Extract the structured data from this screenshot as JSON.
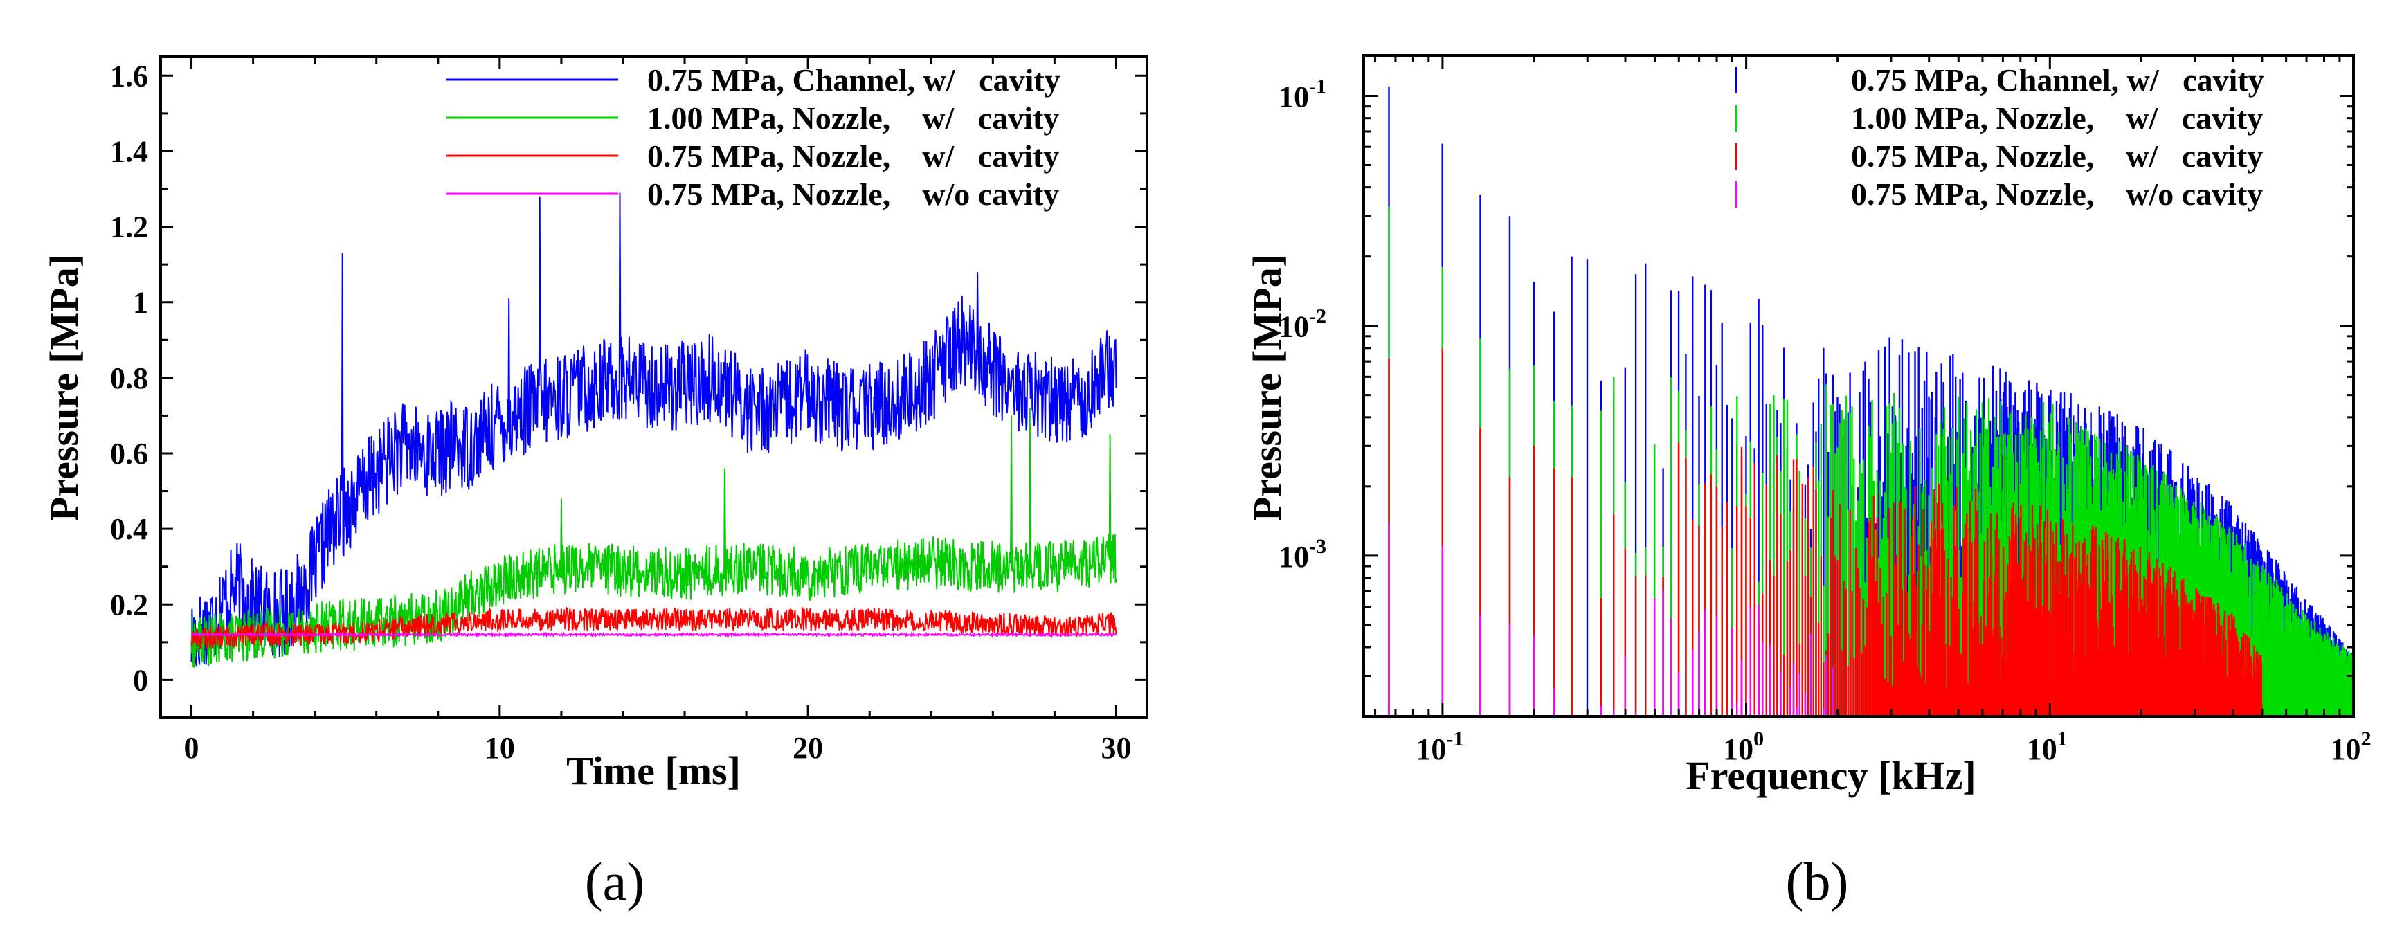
{
  "chart_data": [
    {
      "id": "a",
      "panel_label": "(a)",
      "type": "line",
      "xlabel": "Time [ms]",
      "ylabel": "Pressure [MPa]",
      "xlim": [
        -1,
        31
      ],
      "ylim": [
        -0.1,
        1.65
      ],
      "xticks": [
        0,
        10,
        20,
        30
      ],
      "xtick_labels": [
        "0",
        "10",
        "20",
        "30"
      ],
      "yticks": [
        0,
        0.2,
        0.4,
        0.6,
        0.8,
        1.0,
        1.2,
        1.4,
        1.6
      ],
      "ytick_labels": [
        "0",
        "0.2",
        "0.4",
        "0.6",
        "0.8",
        "1",
        "1.2",
        "1.4",
        "1.6"
      ],
      "legend_position": "top-right",
      "series": [
        {
          "name": "0.75 MPa, Channel, w/   cavity",
          "color": "#0000ff",
          "x": [
            0,
            0.5,
            1,
            1.5,
            2,
            2.5,
            3,
            3.5,
            4,
            4.5,
            5,
            5.5,
            6,
            6.5,
            7,
            7.5,
            8,
            8.5,
            9,
            9.5,
            10,
            11,
            12,
            13,
            14,
            15,
            16,
            17,
            18,
            19,
            20,
            21,
            22,
            23,
            24,
            25,
            26,
            27,
            28,
            29,
            30
          ],
          "values": [
            0.11,
            0.14,
            0.2,
            0.25,
            0.2,
            0.18,
            0.18,
            0.22,
            0.3,
            0.4,
            0.45,
            0.5,
            0.55,
            0.6,
            0.62,
            0.6,
            0.6,
            0.62,
            0.62,
            0.65,
            0.68,
            0.72,
            0.75,
            0.78,
            0.8,
            0.78,
            0.78,
            0.8,
            0.72,
            0.72,
            0.76,
            0.72,
            0.72,
            0.74,
            0.8,
            0.9,
            0.82,
            0.76,
            0.74,
            0.76,
            0.84
          ],
          "noise": 0.12,
          "spikes": [
            [
              4.9,
              1.13
            ],
            [
              11.3,
              1.28
            ],
            [
              13.9,
              1.29
            ],
            [
              10.3,
              1.01
            ],
            [
              25.5,
              1.08
            ]
          ]
        },
        {
          "name": "1.00 MPa, Nozzle,    w/   cavity",
          "color": "#00cc00",
          "x": [
            0,
            2,
            4,
            6,
            8,
            9,
            10,
            12,
            14,
            16,
            18,
            20,
            22,
            24,
            26,
            28,
            30
          ],
          "values": [
            0.1,
            0.12,
            0.14,
            0.15,
            0.17,
            0.22,
            0.26,
            0.3,
            0.29,
            0.28,
            0.3,
            0.28,
            0.3,
            0.31,
            0.3,
            0.3,
            0.32
          ],
          "noise": 0.07,
          "spikes": [
            [
              27.2,
              0.72
            ],
            [
              26.6,
              0.7
            ],
            [
              29.8,
              0.65
            ],
            [
              17.3,
              0.56
            ],
            [
              12,
              0.48
            ]
          ]
        },
        {
          "name": "0.75 MPa, Nozzle,    w/   cavity",
          "color": "#ff0000",
          "x": [
            0,
            2,
            4,
            6,
            8,
            10,
            12,
            14,
            16,
            18,
            20,
            22,
            24,
            26,
            28,
            30
          ],
          "values": [
            0.11,
            0.12,
            0.12,
            0.13,
            0.15,
            0.16,
            0.16,
            0.16,
            0.16,
            0.16,
            0.16,
            0.16,
            0.16,
            0.15,
            0.14,
            0.15
          ],
          "noise": 0.03,
          "spikes": []
        },
        {
          "name": "0.75 MPa, Nozzle,    w/o cavity",
          "color": "#ff00ff",
          "x": [
            0,
            3,
            6,
            10,
            14,
            20,
            25,
            30
          ],
          "values": [
            0.12,
            0.12,
            0.12,
            0.12,
            0.12,
            0.12,
            0.12,
            0.12
          ],
          "noise": 0.003,
          "spikes": []
        }
      ]
    },
    {
      "id": "b",
      "panel_label": "(b)",
      "type": "bar",
      "scale": "log-log",
      "xlabel": "Frequency [kHz]",
      "ylabel": "Pressure [MPa]",
      "xlim": [
        0.055,
        100
      ],
      "ylim": [
        0.0002,
        0.15
      ],
      "xticks": [
        0.1,
        1,
        10,
        100
      ],
      "xtick_labels": [
        [
          "10",
          "-1"
        ],
        [
          "10",
          "0"
        ],
        [
          "10",
          "1"
        ],
        [
          "10",
          "2"
        ]
      ],
      "yticks": [
        0.001,
        0.01,
        0.1
      ],
      "ytick_labels": [
        [
          "10",
          "-3"
        ],
        [
          "10",
          "-2"
        ],
        [
          "10",
          "-1"
        ]
      ],
      "legend_position": "top-right",
      "frequency_step_khz": 0.0333,
      "series": [
        {
          "name": "0.75 MPa, Channel, w/   cavity",
          "color": "#0000ff",
          "peaks": [
            [
              0.0667,
              0.11
            ],
            [
              0.1,
              0.062
            ],
            [
              0.133,
              0.037
            ],
            [
              0.167,
              0.03
            ],
            [
              0.2,
              0.0155
            ],
            [
              0.233,
              0.0115
            ],
            [
              0.267,
              0.02
            ],
            [
              0.3,
              0.0195
            ]
          ],
          "envelope_x": [
            0.3,
            1,
            2,
            3,
            5,
            10,
            20,
            40,
            70,
            100
          ],
          "envelope_y": [
            0.012,
            0.008,
            0.004,
            0.005,
            0.004,
            0.003,
            0.002,
            0.0009,
            0.00035,
            0.0002
          ]
        },
        {
          "name": "1.00 MPa, Nozzle,    w/   cavity",
          "color": "#00dd00",
          "peaks": [
            [
              0.0667,
              0.033
            ],
            [
              0.1,
              0.018
            ],
            [
              0.133,
              0.0088
            ],
            [
              0.167,
              0.0065
            ],
            [
              0.2,
              0.0067
            ],
            [
              0.233,
              0.0047
            ],
            [
              0.267,
              0.0045
            ]
          ],
          "envelope_x": [
            0.3,
            1,
            2,
            5,
            10,
            20,
            40,
            70,
            100
          ],
          "envelope_y": [
            0.004,
            0.003,
            0.003,
            0.0028,
            0.0025,
            0.0015,
            0.0007,
            0.0003,
            0.0002
          ]
        },
        {
          "name": "0.75 MPa, Nozzle,    w/   cavity",
          "color": "#ff0000",
          "peaks": [
            [
              0.0667,
              0.0072
            ],
            [
              0.1,
              0.008
            ],
            [
              0.133,
              0.0036
            ],
            [
              0.167,
              0.0022
            ],
            [
              0.2,
              0.003
            ],
            [
              0.233,
              0.0024
            ],
            [
              0.267,
              0.0022
            ]
          ],
          "envelope_x": [
            0.3,
            1,
            2,
            5,
            10,
            20,
            40,
            50
          ],
          "envelope_y": [
            0.0022,
            0.0018,
            0.0012,
            0.0011,
            0.0009,
            0.0006,
            0.0003,
            0.0002
          ]
        },
        {
          "name": "0.75 MPa, Nozzle,    w/o cavity",
          "color": "#ff00ff",
          "peaks": [
            [
              0.0667,
              0.0014
            ],
            [
              0.1,
              0.0011
            ],
            [
              0.133,
              0.00055
            ],
            [
              0.167,
              0.0005
            ],
            [
              0.2,
              0.00045
            ]
          ],
          "envelope_x": [
            0.2,
            0.5,
            1,
            1.5,
            2
          ],
          "envelope_y": [
            0.0004,
            0.0004,
            0.00035,
            0.0003,
            0.0002
          ]
        }
      ]
    }
  ]
}
